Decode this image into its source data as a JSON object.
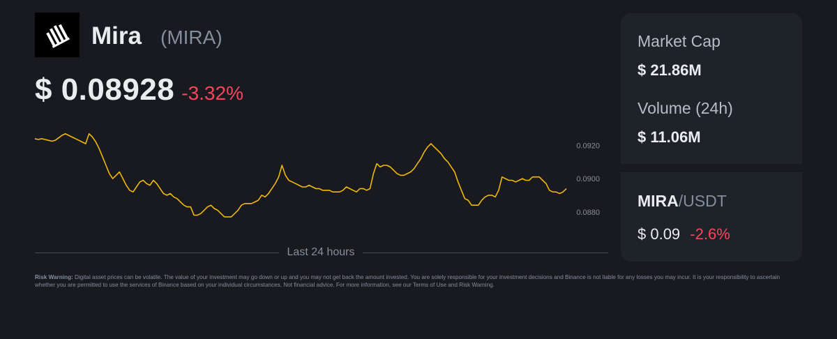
{
  "coin": {
    "name": "Mira",
    "symbol": "(MIRA)",
    "price": "$ 0.08928",
    "change": "-3.32%"
  },
  "timeframe_label": "Last 24 hours",
  "stats": {
    "market_cap_label": "Market Cap",
    "market_cap_value": "$ 21.86M",
    "volume_label": "Volume (24h)",
    "volume_value": "$ 11.06M"
  },
  "pair": {
    "base": "MIRA",
    "quote": "/USDT",
    "price": "$ 0.09",
    "change": "-2.6%"
  },
  "risk_warning": {
    "title": "Risk Warning:",
    "text": " Digital asset prices can be volatile. The value of your investment may go down or up and you may not get back the amount invested. You are solely responsible for your investment decisions and Binance is not liable for any losses you may incur. It is your responsibility to ascertain whether you are permitted to use the services of Binance based on your individual circumstances. Not financial advice. For more information, see our Terms of Use and Risk Warning."
  },
  "colors": {
    "background": "#181A20",
    "card": "#1E2329",
    "line": "#F0B90B",
    "negative": "#F6465D",
    "muted": "#848E9C"
  },
  "icons": {
    "logo": "mira-logo-icon"
  },
  "chart_data": {
    "type": "line",
    "series": [
      {
        "color": "#F0B90B",
        "values": [
          0.0924,
          0.09235,
          0.0924,
          0.09235,
          0.0923,
          0.09225,
          0.0923,
          0.09245,
          0.0926,
          0.0927,
          0.0926,
          0.0925,
          0.0924,
          0.0923,
          0.0922,
          0.0921,
          0.0927,
          0.0925,
          0.0922,
          0.0918,
          0.0913,
          0.0908,
          0.0903,
          0.09,
          0.0902,
          0.0904,
          0.09,
          0.0896,
          0.0893,
          0.0892,
          0.0895,
          0.0898,
          0.0899,
          0.0897,
          0.0896,
          0.0899,
          0.0897,
          0.0894,
          0.0891,
          0.089,
          0.0891,
          0.0889,
          0.0888,
          0.0886,
          0.0884,
          0.0883,
          0.0883,
          0.0878,
          0.0878,
          0.0879,
          0.0881,
          0.0883,
          0.0884,
          0.0882,
          0.0881,
          0.0879,
          0.0877,
          0.0877,
          0.0877,
          0.0879,
          0.0881,
          0.0884,
          0.0885,
          0.0885,
          0.0885,
          0.0886,
          0.0887,
          0.089,
          0.0889,
          0.0891,
          0.0894,
          0.0897,
          0.0901,
          0.0908,
          0.0902,
          0.0899,
          0.0898,
          0.0897,
          0.0896,
          0.0895,
          0.0895,
          0.0896,
          0.0895,
          0.0894,
          0.0894,
          0.0893,
          0.0893,
          0.0893,
          0.0892,
          0.0892,
          0.0892,
          0.0893,
          0.0895,
          0.0894,
          0.0893,
          0.0892,
          0.0894,
          0.0894,
          0.0893,
          0.0894,
          0.0903,
          0.0909,
          0.0907,
          0.0908,
          0.0908,
          0.0907,
          0.0905,
          0.0903,
          0.0902,
          0.0902,
          0.0903,
          0.0904,
          0.0906,
          0.0909,
          0.0912,
          0.0916,
          0.0919,
          0.0921,
          0.0919,
          0.0917,
          0.0915,
          0.0912,
          0.091,
          0.0907,
          0.0904,
          0.0898,
          0.0893,
          0.0888,
          0.0887,
          0.0884,
          0.0884,
          0.0884,
          0.0887,
          0.0889,
          0.089,
          0.089,
          0.0889,
          0.0893,
          0.0901,
          0.09,
          0.0899,
          0.0899,
          0.0898,
          0.0899,
          0.09,
          0.0899,
          0.0899,
          0.0901,
          0.0901,
          0.0901,
          0.0899,
          0.0897,
          0.0893,
          0.0892,
          0.0892,
          0.0891,
          0.0892,
          0.0894
        ]
      }
    ],
    "y_ticks": [
      "0.0920",
      "0.0900",
      "0.0880"
    ],
    "x_label": "Last 24 hours",
    "ylim": [
      0.0869,
      0.0934
    ],
    "grid": false
  }
}
